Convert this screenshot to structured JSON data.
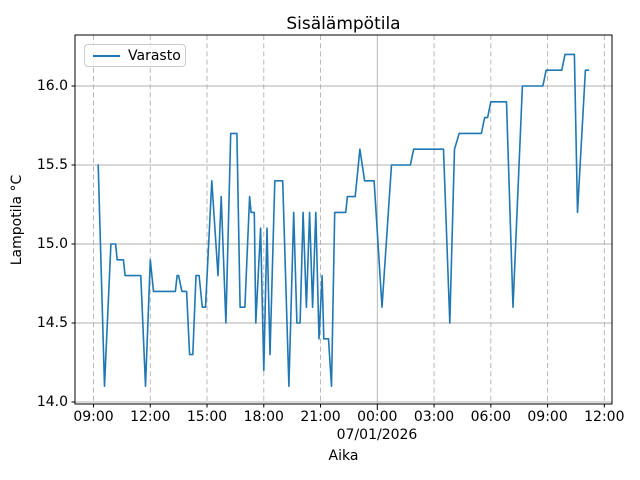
{
  "figure": {
    "title": "Sisälämpötila",
    "xlabel": "Aika",
    "ylabel": "Lampotila °C",
    "date_label": "07/01/2026",
    "legend_label": "Varasto",
    "line_color": "#1f77b4",
    "grid_color": "#b0b0b0",
    "spine_color": "#000000",
    "background_color": "#ffffff"
  },
  "chart_data": {
    "type": "line",
    "title": "Sisälämpötila",
    "xlabel": "Aika",
    "ylabel": "Lampotila °C",
    "grid": true,
    "legend_position": "upper left",
    "legend": [
      "Varasto"
    ],
    "y_ticks": [
      14.0,
      14.5,
      15.0,
      15.5,
      16.0
    ],
    "y_tick_labels": [
      "14.0",
      "14.5",
      "15.0",
      "15.5",
      "16.0"
    ],
    "ylim": [
      13.99,
      16.32
    ],
    "x_ticks": {
      "labels": [
        "09:00",
        "12:00",
        "15:00",
        "18:00",
        "21:00",
        "00:00",
        "03:00",
        "06:00",
        "09:00",
        "12:00"
      ],
      "hours": [
        9,
        12,
        15,
        18,
        21,
        24,
        27,
        30,
        33,
        36
      ],
      "major_index": 5,
      "major_date_label": "07/01/2026"
    },
    "xlim_hours": [
      8.0,
      36.4
    ],
    "time_base": "hours since 06/30/2026 00:00; x tick 00:00 = start of 07/01/2026",
    "series": [
      {
        "name": "Varasto",
        "color": "#1f77b4",
        "points": [
          [
            "06/30 09:15",
            9.25,
            15.5
          ],
          [
            "06/30 09:35",
            9.58,
            14.1
          ],
          [
            "06/30 09:55",
            9.92,
            15.0
          ],
          [
            "06/30 10:10",
            10.17,
            15.0
          ],
          [
            "06/30 10:15",
            10.25,
            14.9
          ],
          [
            "06/30 10:35",
            10.58,
            14.9
          ],
          [
            "06/30 10:40",
            10.67,
            14.8
          ],
          [
            "06/30 11:30",
            11.5,
            14.8
          ],
          [
            "06/30 11:45",
            11.75,
            14.1
          ],
          [
            "06/30 12:00",
            12.0,
            14.9
          ],
          [
            "06/30 12:10",
            12.17,
            14.7
          ],
          [
            "06/30 13:20",
            13.33,
            14.7
          ],
          [
            "06/30 13:25",
            13.42,
            14.8
          ],
          [
            "06/30 13:30",
            13.5,
            14.8
          ],
          [
            "06/30 13:40",
            13.67,
            14.7
          ],
          [
            "06/30 13:55",
            13.92,
            14.7
          ],
          [
            "06/30 14:05",
            14.08,
            14.3
          ],
          [
            "06/30 14:15",
            14.25,
            14.3
          ],
          [
            "06/30 14:25",
            14.42,
            14.8
          ],
          [
            "06/30 14:35",
            14.58,
            14.8
          ],
          [
            "06/30 14:45",
            14.75,
            14.6
          ],
          [
            "06/30 14:55",
            14.92,
            14.6
          ],
          [
            "06/30 15:15",
            15.25,
            15.4
          ],
          [
            "06/30 15:35",
            15.58,
            14.8
          ],
          [
            "06/30 15:45",
            15.75,
            15.3
          ],
          [
            "06/30 16:00",
            16.0,
            14.5
          ],
          [
            "06/30 16:15",
            16.25,
            15.7
          ],
          [
            "06/30 16:35",
            16.58,
            15.7
          ],
          [
            "06/30 16:45",
            16.75,
            14.6
          ],
          [
            "06/30 17:00",
            17.0,
            14.6
          ],
          [
            "06/30 17:15",
            17.25,
            15.3
          ],
          [
            "06/30 17:20",
            17.33,
            15.2
          ],
          [
            "06/30 17:30",
            17.5,
            15.2
          ],
          [
            "06/30 17:35",
            17.58,
            14.5
          ],
          [
            "06/30 17:50",
            17.83,
            15.1
          ],
          [
            "06/30 18:00",
            18.0,
            14.2
          ],
          [
            "06/30 18:10",
            18.17,
            15.1
          ],
          [
            "06/30 18:20",
            18.33,
            14.3
          ],
          [
            "06/30 18:35",
            18.58,
            15.4
          ],
          [
            "06/30 19:00",
            19.0,
            15.4
          ],
          [
            "06/30 19:20",
            19.33,
            14.1
          ],
          [
            "06/30 19:35",
            19.58,
            15.2
          ],
          [
            "06/30 19:45",
            19.75,
            14.5
          ],
          [
            "06/30 19:55",
            19.92,
            14.5
          ],
          [
            "06/30 20:05",
            20.08,
            15.2
          ],
          [
            "06/30 20:15",
            20.25,
            14.6
          ],
          [
            "06/30 20:25",
            20.42,
            15.2
          ],
          [
            "06/30 20:35",
            20.58,
            14.6
          ],
          [
            "06/30 20:45",
            20.75,
            15.2
          ],
          [
            "06/30 20:55",
            20.92,
            14.4
          ],
          [
            "06/30 21:05",
            21.08,
            14.8
          ],
          [
            "06/30 21:10",
            21.17,
            14.4
          ],
          [
            "06/30 21:25",
            21.42,
            14.4
          ],
          [
            "06/30 21:35",
            21.58,
            14.1
          ],
          [
            "06/30 21:45",
            21.75,
            15.2
          ],
          [
            "06/30 22:20",
            22.33,
            15.2
          ],
          [
            "06/30 22:25",
            22.42,
            15.3
          ],
          [
            "06/30 22:50",
            22.83,
            15.3
          ],
          [
            "06/30 23:05",
            23.08,
            15.6
          ],
          [
            "06/30 23:20",
            23.33,
            15.4
          ],
          [
            "06/30 23:50",
            23.83,
            15.4
          ],
          [
            "07/01 00:15",
            24.25,
            14.6
          ],
          [
            "07/01 00:45",
            24.75,
            15.5
          ],
          [
            "07/01 01:45",
            25.75,
            15.5
          ],
          [
            "07/01 01:55",
            25.92,
            15.6
          ],
          [
            "07/01 03:30",
            27.5,
            15.6
          ],
          [
            "07/01 03:50",
            27.83,
            14.5
          ],
          [
            "07/01 04:05",
            28.08,
            15.6
          ],
          [
            "07/01 04:20",
            28.33,
            15.7
          ],
          [
            "07/01 05:30",
            29.5,
            15.7
          ],
          [
            "07/01 05:40",
            29.67,
            15.8
          ],
          [
            "07/01 05:50",
            29.83,
            15.8
          ],
          [
            "07/01 06:00",
            30.0,
            15.9
          ],
          [
            "07/01 06:50",
            30.83,
            15.9
          ],
          [
            "07/01 07:10",
            31.17,
            14.6
          ],
          [
            "07/01 07:40",
            31.67,
            16.0
          ],
          [
            "07/01 08:45",
            32.75,
            16.0
          ],
          [
            "07/01 08:55",
            32.92,
            16.1
          ],
          [
            "07/01 09:45",
            33.75,
            16.1
          ],
          [
            "07/01 09:55",
            33.92,
            16.2
          ],
          [
            "07/01 10:25",
            34.42,
            16.2
          ],
          [
            "07/01 10:35",
            34.58,
            15.2
          ],
          [
            "07/01 11:00",
            35.0,
            16.1
          ],
          [
            "07/01 11:10",
            35.17,
            16.1
          ]
        ]
      }
    ]
  }
}
